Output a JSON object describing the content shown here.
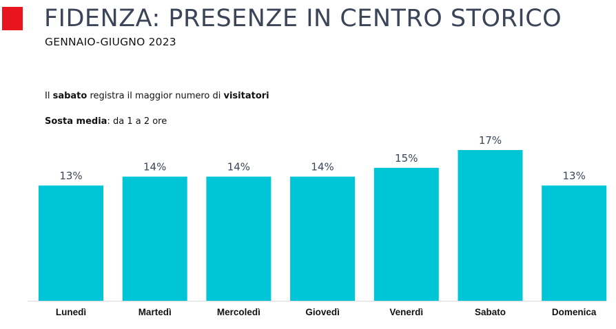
{
  "header": {
    "title": "FIDENZA: PRESENZE IN CENTRO STORICO",
    "subtitle": "GENNAIO-GIUGNO 2023",
    "accent_color": "#e8141e"
  },
  "notes": {
    "line1": {
      "prefix": "Il ",
      "bold1": "sabato",
      "middle": " registra il maggior numero di ",
      "bold2": "visitatori"
    },
    "line2": {
      "bold": "Sosta media",
      "rest": ": da 1 a 2 ore"
    }
  },
  "chart_data": {
    "type": "bar",
    "categories": [
      "Lunedì",
      "Martedì",
      "Mercoledì",
      "Giovedì",
      "Venerdì",
      "Sabato",
      "Domenica"
    ],
    "values": [
      13,
      14,
      14,
      14,
      15,
      17,
      13
    ],
    "value_labels": [
      "13%",
      "14%",
      "14%",
      "14%",
      "15%",
      "17%",
      "13%"
    ],
    "unit": "%",
    "ylim": [
      0,
      17
    ],
    "bar_color": "#00c5d6",
    "grid": false,
    "legend": "none"
  }
}
